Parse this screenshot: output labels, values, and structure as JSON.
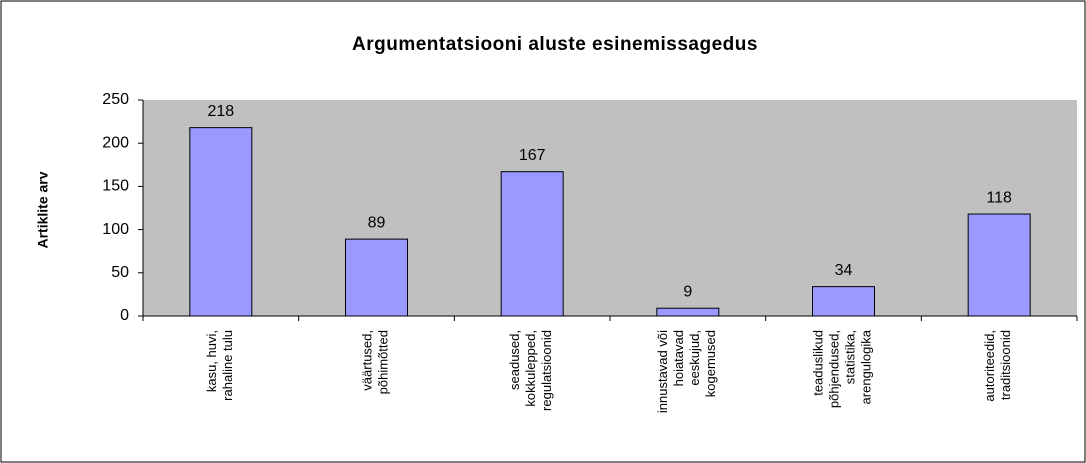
{
  "chart_data": {
    "type": "bar",
    "title": "Argumentatsiooni aluste esinemissagedus",
    "y_label": "Artiklite arv",
    "categories": [
      "kasu, huvi, rahaline tulu",
      "väärtused, põhimõtted",
      "seadused, kokkulepped, regulatsioonid",
      "innustavad või hoiatavad eeskujud, kogemused",
      "teaduslikud põhjendused, statistika, arengulogika",
      "autoriteedid, traditsioonid"
    ],
    "values": [
      218,
      89,
      167,
      9,
      34,
      118
    ],
    "color": "#9999ff",
    "ylim": [
      0,
      250
    ],
    "yticks": [
      0,
      50,
      100,
      150,
      200,
      250
    ],
    "grid": false
  }
}
